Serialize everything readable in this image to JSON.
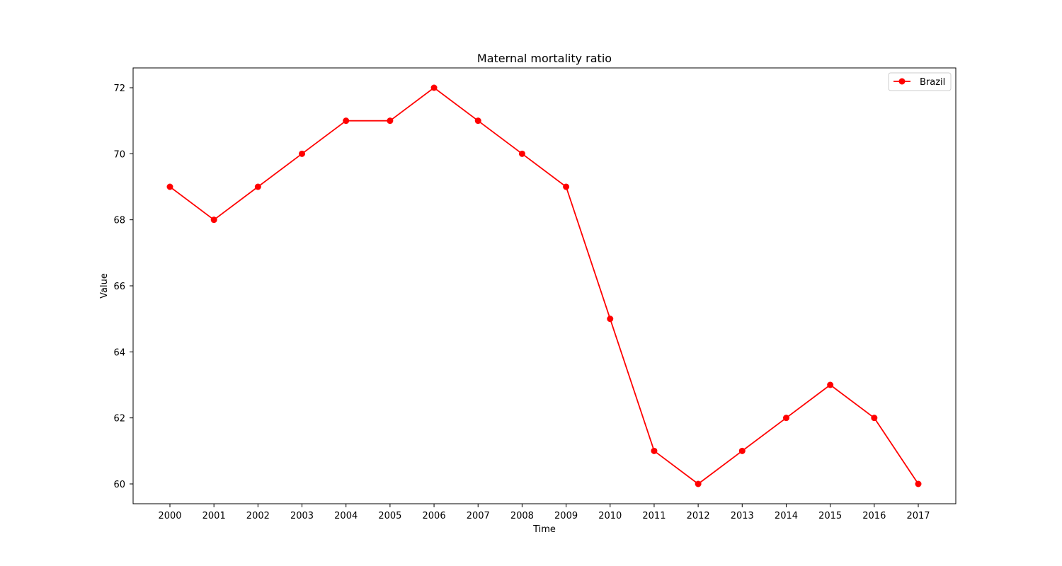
{
  "chart_data": {
    "type": "line",
    "title": "Maternal mortality ratio",
    "xlabel": "Time",
    "ylabel": "Value",
    "x": [
      "2000",
      "2001",
      "2002",
      "2003",
      "2004",
      "2005",
      "2006",
      "2007",
      "2008",
      "2009",
      "2010",
      "2011",
      "2012",
      "2013",
      "2014",
      "2015",
      "2016",
      "2017"
    ],
    "yticks": [
      60,
      62,
      64,
      66,
      68,
      70,
      72
    ],
    "ylim": [
      59.4,
      72.6
    ],
    "grid": false,
    "legend_position": "top-right",
    "series": [
      {
        "name": "Brazil",
        "color": "#ff0000",
        "marker": "circle",
        "values": [
          69,
          68,
          69,
          70,
          71,
          71,
          72,
          71,
          70,
          69,
          65,
          61,
          60,
          61,
          62,
          63,
          62,
          60
        ]
      }
    ]
  }
}
